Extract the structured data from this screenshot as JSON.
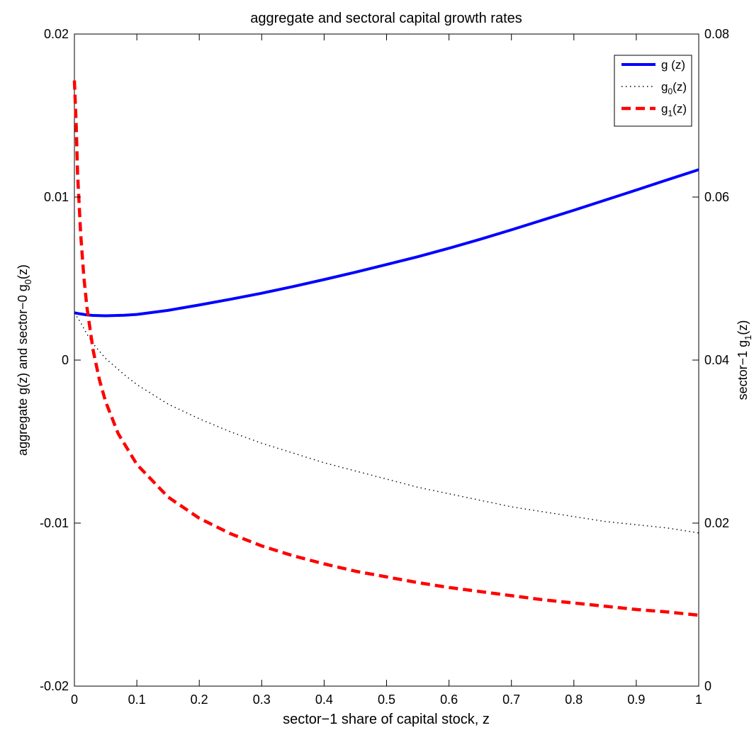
{
  "chart_data": {
    "type": "line",
    "title": "aggregate and sectoral capital growth rates",
    "xlabel": "sector−1 share of capital stock, z",
    "ylabel_left": {
      "pre": "aggregate g(z) and sector−0 g",
      "sub": "0",
      "post": "(z)"
    },
    "ylabel_right": {
      "pre": "sector−1 g",
      "sub": "1",
      "post": "(z)"
    },
    "xlim": [
      0,
      1
    ],
    "ylim_left": [
      -0.02,
      0.02
    ],
    "ylim_right": [
      0,
      0.08
    ],
    "xticks": [
      {
        "v": 0,
        "label": "0"
      },
      {
        "v": 0.1,
        "label": "0.1"
      },
      {
        "v": 0.2,
        "label": "0.2"
      },
      {
        "v": 0.3,
        "label": "0.3"
      },
      {
        "v": 0.4,
        "label": "0.4"
      },
      {
        "v": 0.5,
        "label": "0.5"
      },
      {
        "v": 0.6,
        "label": "0.6"
      },
      {
        "v": 0.7,
        "label": "0.7"
      },
      {
        "v": 0.8,
        "label": "0.8"
      },
      {
        "v": 0.9,
        "label": "0.9"
      },
      {
        "v": 1,
        "label": "1"
      }
    ],
    "yticks_left": [
      {
        "v": -0.02,
        "label": "-0.02"
      },
      {
        "v": -0.01,
        "label": "-0.01"
      },
      {
        "v": 0,
        "label": "0"
      },
      {
        "v": 0.01,
        "label": "0.01"
      },
      {
        "v": 0.02,
        "label": "0.02"
      }
    ],
    "yticks_right": [
      {
        "v": 0,
        "label": "0"
      },
      {
        "v": 0.02,
        "label": "0.02"
      },
      {
        "v": 0.04,
        "label": "0.04"
      },
      {
        "v": 0.06,
        "label": "0.06"
      },
      {
        "v": 0.08,
        "label": "0.08"
      }
    ],
    "grid": false,
    "legend_position": "top-right",
    "series": [
      {
        "name": "g (z)",
        "name_pre": "g (z)",
        "name_sub": "",
        "name_post": "",
        "axis": "left",
        "color": "#0000ff",
        "style": "solid",
        "x": [
          0,
          0.01,
          0.02,
          0.03,
          0.05,
          0.08,
          0.1,
          0.15,
          0.2,
          0.25,
          0.3,
          0.35,
          0.4,
          0.45,
          0.5,
          0.55,
          0.6,
          0.65,
          0.7,
          0.75,
          0.8,
          0.85,
          0.9,
          0.95,
          1.0
        ],
        "y": [
          0.0029,
          0.00283,
          0.00277,
          0.00274,
          0.00272,
          0.00275,
          0.0028,
          0.00305,
          0.00338,
          0.00373,
          0.0041,
          0.00451,
          0.00494,
          0.00539,
          0.00586,
          0.00634,
          0.00686,
          0.00741,
          0.00799,
          0.00859,
          0.00919,
          0.00981,
          0.01043,
          0.01106,
          0.01168
        ]
      },
      {
        "name": "g0(z)",
        "name_pre": "g",
        "name_sub": "0",
        "name_post": "(z)",
        "axis": "left",
        "color": "#000000",
        "style": "dotted",
        "x": [
          0,
          0.005,
          0.01,
          0.02,
          0.03,
          0.05,
          0.08,
          0.1,
          0.15,
          0.2,
          0.25,
          0.3,
          0.35,
          0.4,
          0.45,
          0.5,
          0.55,
          0.6,
          0.65,
          0.7,
          0.75,
          0.8,
          0.85,
          0.9,
          0.95,
          1.0
        ],
        "y": [
          0.0029,
          0.0026,
          0.0023,
          0.0016,
          0.001,
          0.0001,
          -0.0009,
          -0.0015,
          -0.0027,
          -0.0036,
          -0.0044,
          -0.0051,
          -0.0057,
          -0.0063,
          -0.0068,
          -0.0073,
          -0.0078,
          -0.0082,
          -0.0086,
          -0.009,
          -0.0093,
          -0.0096,
          -0.0099,
          -0.0101,
          -0.0103,
          -0.0106
        ]
      },
      {
        "name": "g1(z)",
        "name_pre": "g",
        "name_sub": "1",
        "name_post": "(z)",
        "axis": "right",
        "color": "#ff0000",
        "style": "dashed",
        "x": [
          0,
          0.003,
          0.005,
          0.01,
          0.015,
          0.02,
          0.03,
          0.04,
          0.05,
          0.07,
          0.1,
          0.15,
          0.2,
          0.25,
          0.3,
          0.35,
          0.4,
          0.45,
          0.5,
          0.55,
          0.6,
          0.65,
          0.7,
          0.75,
          0.8,
          0.85,
          0.9,
          0.95,
          1.0
        ],
        "y": [
          0.0743,
          0.0685,
          0.063,
          0.0555,
          0.0503,
          0.0465,
          0.0412,
          0.0376,
          0.0349,
          0.031,
          0.0272,
          0.0232,
          0.0206,
          0.0187,
          0.0172,
          0.016,
          0.015,
          0.0141,
          0.0134,
          0.0127,
          0.0121,
          0.0116,
          0.0111,
          0.0106,
          0.0102,
          0.0098,
          0.0094,
          0.0091,
          0.0087
        ]
      }
    ]
  }
}
